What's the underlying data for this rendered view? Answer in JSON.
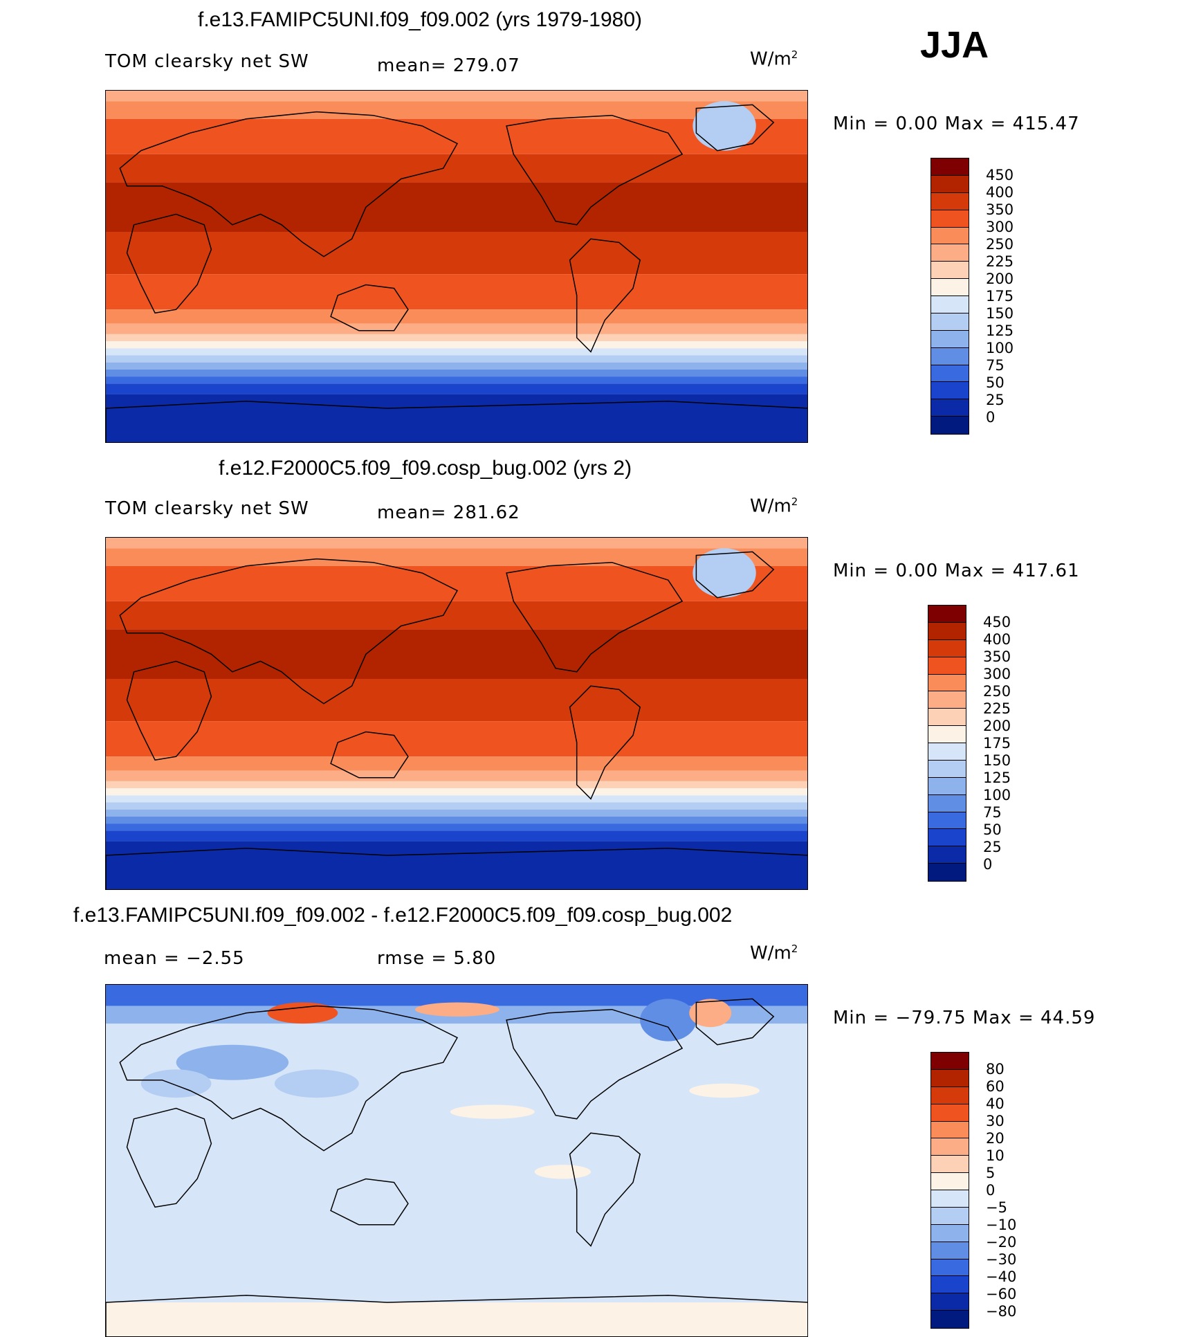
{
  "season": "JJA",
  "panels": [
    {
      "title": "f.e13.FAMIPC5UNI.f09_f09.002 (yrs 1979-1980)",
      "left_label": "TOM clearsky net SW",
      "center_label": "mean= 279.07",
      "units": "W/m",
      "units_sup": "2",
      "minmax": "Min =    0.00 Max = 415.47",
      "colorbar": {
        "labels": [
          "450",
          "400",
          "350",
          "300",
          "250",
          "225",
          "200",
          "175",
          "150",
          "125",
          "100",
          "75",
          "50",
          "25",
          "0"
        ],
        "colors": [
          "#7f0000",
          "#b22400",
          "#d43a0a",
          "#ef5320",
          "#f98c58",
          "#fcad86",
          "#fdd1b6",
          "#fdf2e6",
          "#d6e6f8",
          "#b4cdf2",
          "#8db2ec",
          "#5f8ee4",
          "#3a6ae0",
          "#1a44cc",
          "#0a2aa8",
          "#001a80"
        ]
      },
      "map_kind": "absolute"
    },
    {
      "title": "f.e12.F2000C5.f09_f09.cosp_bug.002 (yrs 2)",
      "left_label": "TOM clearsky net SW",
      "center_label": "mean= 281.62",
      "units": "W/m",
      "units_sup": "2",
      "minmax": "Min =    0.00 Max = 417.61",
      "colorbar": {
        "labels": [
          "450",
          "400",
          "350",
          "300",
          "250",
          "225",
          "200",
          "175",
          "150",
          "125",
          "100",
          "75",
          "50",
          "25",
          "0"
        ],
        "colors": [
          "#7f0000",
          "#b22400",
          "#d43a0a",
          "#ef5320",
          "#f98c58",
          "#fcad86",
          "#fdd1b6",
          "#fdf2e6",
          "#d6e6f8",
          "#b4cdf2",
          "#8db2ec",
          "#5f8ee4",
          "#3a6ae0",
          "#1a44cc",
          "#0a2aa8",
          "#001a80"
        ]
      },
      "map_kind": "absolute"
    },
    {
      "title": "f.e13.FAMIPC5UNI.f09_f09.002 - f.e12.F2000C5.f09_f09.cosp_bug.002",
      "left_label": "mean =   −2.55",
      "center_label": "rmse =    5.80",
      "units": "W/m",
      "units_sup": "2",
      "minmax": "Min = −79.75 Max =  44.59",
      "colorbar": {
        "labels": [
          "80",
          "60",
          "40",
          "30",
          "20",
          "10",
          "5",
          "0",
          "−5",
          "−10",
          "−20",
          "−30",
          "−40",
          "−60",
          "−80"
        ],
        "colors": [
          "#7f0000",
          "#b22400",
          "#d43a0a",
          "#ef5320",
          "#f98c58",
          "#fcad86",
          "#fdd1b6",
          "#fdf2e6",
          "#d6e6f8",
          "#b4cdf2",
          "#8db2ec",
          "#5f8ee4",
          "#3a6ae0",
          "#1a44cc",
          "#0a2aa8",
          "#001a80"
        ]
      },
      "map_kind": "difference"
    }
  ]
}
